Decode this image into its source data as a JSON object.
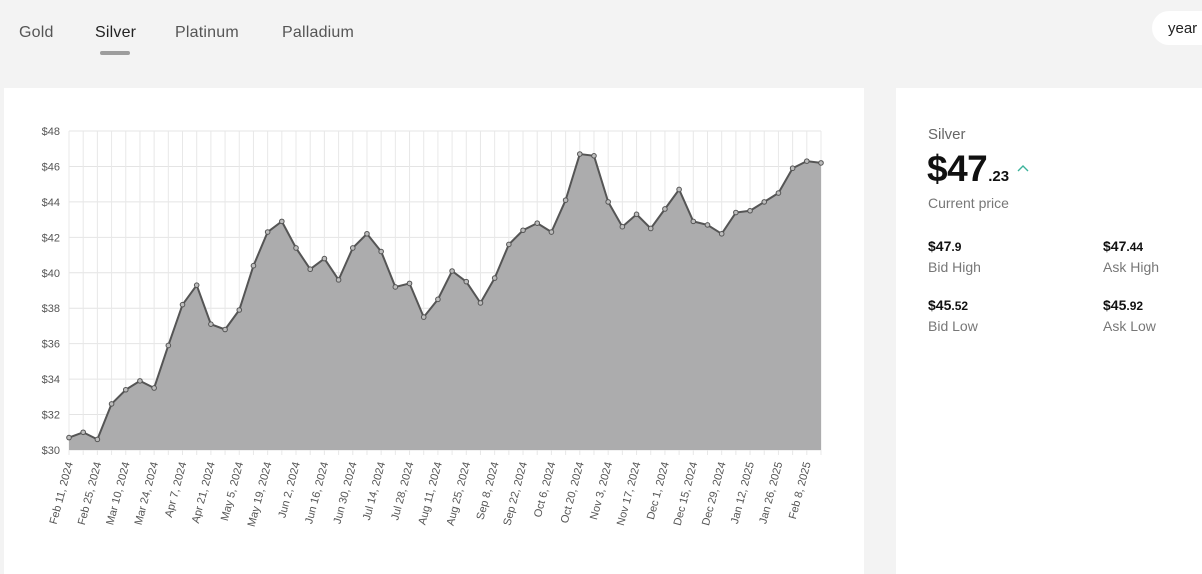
{
  "tabs": [
    {
      "label": "Gold",
      "active": false
    },
    {
      "label": "Silver",
      "active": true
    },
    {
      "label": "Platinum",
      "active": false
    },
    {
      "label": "Palladium",
      "active": false
    }
  ],
  "range_selector": {
    "label": "year"
  },
  "info": {
    "metal": "Silver",
    "price_major": "$47",
    "price_minor": ".23",
    "trend_icon": "chevron-up-icon",
    "current_label": "Current price",
    "bid_high": {
      "major": "$47",
      "minor": ".9",
      "label": "Bid High"
    },
    "ask_high": {
      "major": "$47",
      "minor": ".44",
      "label": "Ask High"
    },
    "bid_low": {
      "major": "$45",
      "minor": ".52",
      "label": "Bid Low"
    },
    "ask_low": {
      "major": "$45",
      "minor": ".92",
      "label": "Ask Low"
    }
  },
  "colors": {
    "area_fill": "#acacad",
    "line": "#555555",
    "trend_up": "#3bb39b"
  },
  "chart_data": {
    "type": "area",
    "ylim": [
      30,
      48
    ],
    "y_ticks": [
      "$30",
      "$32",
      "$34",
      "$36",
      "$38",
      "$40",
      "$42",
      "$44",
      "$46",
      "$48"
    ],
    "x_tick_labels": [
      "Feb 11, 2024",
      "Feb 25, 2024",
      "Mar 10, 2024",
      "Mar 24, 2024",
      "Apr 7, 2024",
      "Apr 21, 2024",
      "May 5, 2024",
      "May 19, 2024",
      "Jun 2, 2024",
      "Jun 16, 2024",
      "Jun 30, 2024",
      "Jul 14, 2024",
      "Jul 28, 2024",
      "Aug 11, 2024",
      "Aug 25, 2024",
      "Sep 8, 2024",
      "Sep 22, 2024",
      "Oct 6, 2024",
      "Oct 20, 2024",
      "Nov 3, 2024",
      "Nov 17, 2024",
      "Dec 1, 2024",
      "Dec 15, 2024",
      "Dec 29, 2024",
      "Jan 12, 2025",
      "Jan 26, 2025",
      "Feb 8, 2025"
    ],
    "grid": true,
    "values": [
      30.7,
      31.0,
      30.6,
      32.6,
      33.4,
      33.9,
      33.5,
      35.9,
      38.2,
      39.3,
      37.1,
      36.8,
      37.9,
      40.4,
      42.3,
      42.9,
      41.4,
      40.2,
      40.8,
      39.6,
      41.4,
      42.2,
      41.2,
      39.2,
      39.4,
      37.5,
      38.5,
      40.1,
      39.5,
      38.3,
      39.7,
      41.6,
      42.4,
      42.8,
      42.3,
      44.1,
      46.7,
      46.6,
      44.0,
      42.6,
      43.3,
      42.5,
      43.6,
      44.7,
      42.9,
      42.7,
      42.2,
      43.4,
      43.5,
      44.0,
      44.5,
      45.9,
      46.3,
      46.2
    ]
  }
}
